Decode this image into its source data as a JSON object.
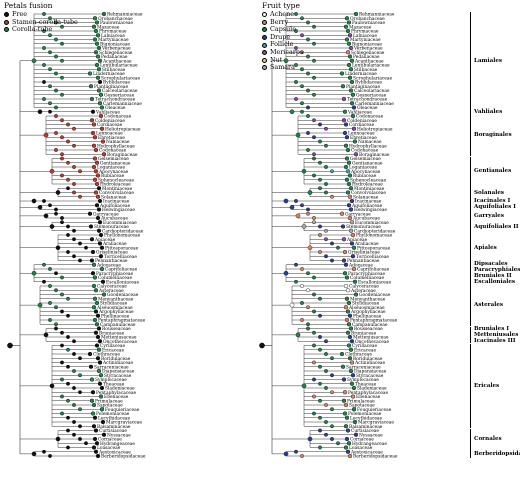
{
  "left_panel": {
    "legend_title": "Petals fusion",
    "legend": [
      {
        "label": "Free",
        "color": "#111111"
      },
      {
        "label": "Stamen-corolla-tube",
        "color": "#c0392b"
      },
      {
        "label": "Corolla-tube",
        "color": "#1e8449"
      }
    ]
  },
  "right_panel": {
    "legend_title": "Fruit type",
    "legend": [
      {
        "label": "Achene",
        "color": "#ffffff"
      },
      {
        "label": "Berry",
        "color": "#e08060"
      },
      {
        "label": "Capsule",
        "color": "#1e8449"
      },
      {
        "label": "Drupe",
        "color": "#2c3e99"
      },
      {
        "label": "Follicle",
        "color": "#40a0c0"
      },
      {
        "label": "Mericarps",
        "color": "#8e44ad"
      },
      {
        "label": "Nut",
        "color": "#f4d03f"
      },
      {
        "label": "Samara",
        "color": "#aaaaaa"
      }
    ]
  },
  "orders": [
    {
      "name": "Lamiales",
      "lines": [
        "Lamiales"
      ]
    },
    {
      "name": "Vahliales",
      "lines": [
        "Vahliales"
      ]
    },
    {
      "name": "Boraginales",
      "lines": [
        "Boraginales"
      ]
    },
    {
      "name": "Gentianales",
      "lines": [
        "Gentianales"
      ]
    },
    {
      "name": "Solanales",
      "lines": [
        "Solanales"
      ]
    },
    {
      "name": "Icacinales",
      "lines": [
        "Icacinales I"
      ]
    },
    {
      "name": "Aquifoliales-1",
      "lines": [
        "Aquifoliales I"
      ]
    },
    {
      "name": "Garryales",
      "lines": [
        "Garryales"
      ]
    },
    {
      "name": "Aquifoliales-2",
      "lines": [
        "Aquifoliales II"
      ]
    },
    {
      "name": "Apiales",
      "lines": [
        "Apiales"
      ]
    },
    {
      "name": "Dipsacales-group",
      "lines": [
        "Dipsacales",
        "Paracryphiales",
        "Bruniales II",
        "Escalloniales"
      ]
    },
    {
      "name": "Asterales",
      "lines": [
        "Asterales"
      ]
    },
    {
      "name": "Bruniales-group",
      "lines": [
        "Bruniales I",
        "Metteniusales",
        "Icacinales III"
      ]
    },
    {
      "name": "Ericales",
      "lines": [
        "Ericales"
      ]
    },
    {
      "name": "Cornales",
      "lines": [
        "Cornales"
      ]
    },
    {
      "name": "Berberidopsidales",
      "lines": [
        "Berberidopsidales"
      ]
    }
  ],
  "taxa": [
    {
      "name": "Rehmanniaceae",
      "fusion": 2,
      "fruit": 2
    },
    {
      "name": "Orobanchaceae",
      "fusion": 2,
      "fruit": 2
    },
    {
      "name": "Paulowniaceae",
      "fusion": 2,
      "fruit": 2
    },
    {
      "name": "Mazaceae",
      "fusion": 2,
      "fruit": 2
    },
    {
      "name": "Phrymaceae",
      "fusion": 2,
      "fruit": 2
    },
    {
      "name": "Lamiaceae",
      "fusion": 2,
      "fruit": 5
    },
    {
      "name": "Martyniaceae",
      "fusion": 2,
      "fruit": 2
    },
    {
      "name": "Bignoniaceae",
      "fusion": 2,
      "fruit": 2
    },
    {
      "name": "Verbenaceae",
      "fusion": 2,
      "fruit": 5
    },
    {
      "name": "Schlegeliaceae",
      "fusion": 2,
      "fruit": 1
    },
    {
      "name": "Pedaliaceae",
      "fusion": 2,
      "fruit": 2
    },
    {
      "name": "Acanthaceae",
      "fusion": 2,
      "fruit": 2
    },
    {
      "name": "Lentibulariaceae",
      "fusion": 2,
      "fruit": 2
    },
    {
      "name": "Stilbaceae",
      "fusion": 2,
      "fruit": 2
    },
    {
      "name": "Linderniaceae",
      "fusion": 2,
      "fruit": 2
    },
    {
      "name": "Scrophulariaceae",
      "fusion": 2,
      "fruit": 2
    },
    {
      "name": "Byblidaceae",
      "fusion": 0,
      "fruit": 2
    },
    {
      "name": "Plantaginaceae",
      "fusion": 2,
      "fruit": 2
    },
    {
      "name": "Calceolariaceae",
      "fusion": 2,
      "fruit": 2
    },
    {
      "name": "Gesneriaceae",
      "fusion": 2,
      "fruit": 2
    },
    {
      "name": "Tetrachondraceae",
      "fusion": 2,
      "fruit": 5
    },
    {
      "name": "Carlemanniaceae",
      "fusion": 2,
      "fruit": 2
    },
    {
      "name": "Oleaceae",
      "fusion": 2,
      "fruit": 3
    },
    {
      "name": "Vahliaceae",
      "fusion": 0,
      "fruit": 2
    },
    {
      "name": "Codonaceae",
      "fusion": 1,
      "fruit": 2
    },
    {
      "name": "Coldeniaceae",
      "fusion": 1,
      "fruit": 5
    },
    {
      "name": "Cordiaceae",
      "fusion": 1,
      "fruit": 3
    },
    {
      "name": "Heliotropiaceae",
      "fusion": 1,
      "fruit": 5
    },
    {
      "name": "Lennoaceae",
      "fusion": 1,
      "fruit": 3
    },
    {
      "name": "Ehretiaceae",
      "fusion": 1,
      "fruit": 3
    },
    {
      "name": "Namaceae",
      "fusion": 1,
      "fruit": 2
    },
    {
      "name": "Hydrophyllaceae",
      "fusion": 1,
      "fruit": 2
    },
    {
      "name": "Codonaceae",
      "fusion": 1,
      "fruit": 2
    },
    {
      "name": "Boraginaceae",
      "fusion": 1,
      "fruit": 5
    },
    {
      "name": "Gelsemiaceae",
      "fusion": 1,
      "fruit": 2
    },
    {
      "name": "Gentianaceae",
      "fusion": 1,
      "fruit": 2
    },
    {
      "name": "Loganiaceae",
      "fusion": 1,
      "fruit": 2
    },
    {
      "name": "Apocynaceae",
      "fusion": 1,
      "fruit": 4
    },
    {
      "name": "Rubiaceae",
      "fusion": 1,
      "fruit": 2
    },
    {
      "name": "Sphenocleaceae",
      "fusion": 1,
      "fruit": 2
    },
    {
      "name": "Hydroleaceae",
      "fusion": 1,
      "fruit": 2
    },
    {
      "name": "Montiniaceae",
      "fusion": 0,
      "fruit": 2
    },
    {
      "name": "Convolvulaceae",
      "fusion": 1,
      "fruit": 2
    },
    {
      "name": "Solanaceae",
      "fusion": 1,
      "fruit": 1
    },
    {
      "name": "Icacinaceae",
      "fusion": 0,
      "fruit": 3
    },
    {
      "name": "Aquifoliaceae",
      "fusion": 0,
      "fruit": 3
    },
    {
      "name": "Helwingiaceae",
      "fusion": 0,
      "fruit": 3
    },
    {
      "name": "Garryaceae",
      "fusion": 0,
      "fruit": 1
    },
    {
      "name": "Aucubaceae",
      "fusion": 0,
      "fruit": 1
    },
    {
      "name": "Eucommiaceae",
      "fusion": 0,
      "fruit": 7
    },
    {
      "name": "Stemonuraceae",
      "fusion": 0,
      "fruit": 3
    },
    {
      "name": "Cardiopteridaceae",
      "fusion": 0,
      "fruit": 7
    },
    {
      "name": "Phyllonomaceae",
      "fusion": 0,
      "fruit": 1
    },
    {
      "name": "Apiaceae",
      "fusion": 0,
      "fruit": 5
    },
    {
      "name": "Araliaceae",
      "fusion": 0,
      "fruit": 3
    },
    {
      "name": "Pittosporaceae",
      "fusion": 0,
      "fruit": 2
    },
    {
      "name": "Griseliniaceae",
      "fusion": 0,
      "fruit": 1
    },
    {
      "name": "Torricelliaceae",
      "fusion": 0,
      "fruit": 3
    },
    {
      "name": "Pennantiaceae",
      "fusion": 0,
      "fruit": 3
    },
    {
      "name": "Adoxaceae",
      "fusion": 2,
      "fruit": 3
    },
    {
      "name": "Caprifoliaceae",
      "fusion": 2,
      "fruit": 1
    },
    {
      "name": "Paracryphiaceae",
      "fusion": 0,
      "fruit": 2
    },
    {
      "name": "Columelliaceae",
      "fusion": 2,
      "fruit": 2
    },
    {
      "name": "Escalloniaceae",
      "fusion": 0,
      "fruit": 2
    },
    {
      "name": "Calyceraceae",
      "fusion": 2,
      "fruit": 0
    },
    {
      "name": "Asteraceae",
      "fusion": 2,
      "fruit": 0
    },
    {
      "name": "Goodeniaceae",
      "fusion": 2,
      "fruit": 2
    },
    {
      "name": "Menyanthaceae",
      "fusion": 2,
      "fruit": 2
    },
    {
      "name": "Stylidiaceae",
      "fusion": 2,
      "fruit": 2
    },
    {
      "name": "Alseuosmiaceae",
      "fusion": 2,
      "fruit": 1
    },
    {
      "name": "Argophyllaceae",
      "fusion": 0,
      "fruit": 2
    },
    {
      "name": "Phellinaceae",
      "fusion": 0,
      "fruit": 3
    },
    {
      "name": "Pentaphragmataceae",
      "fusion": 2,
      "fruit": 1
    },
    {
      "name": "Campanulaceae",
      "fusion": 2,
      "fruit": 2
    },
    {
      "name": "Rousseaceae",
      "fusion": 0,
      "fruit": 2
    },
    {
      "name": "Bruniaceae",
      "fusion": 0,
      "fruit": 2
    },
    {
      "name": "Metteniusaceae",
      "fusion": 0,
      "fruit": 3
    },
    {
      "name": "Oncothecaceae",
      "fusion": 0,
      "fruit": 3
    },
    {
      "name": "Cyrillaceae",
      "fusion": 0,
      "fruit": 2
    },
    {
      "name": "Ericaceae",
      "fusion": 2,
      "fruit": 2
    },
    {
      "name": "Clethraceae",
      "fusion": 0,
      "fruit": 2
    },
    {
      "name": "Roridulaceae",
      "fusion": 0,
      "fruit": 2
    },
    {
      "name": "Actinidiaceae",
      "fusion": 0,
      "fruit": 1
    },
    {
      "name": "Sarraceniaceae",
      "fusion": 0,
      "fruit": 2
    },
    {
      "name": "Diapensiaceae",
      "fusion": 2,
      "fruit": 2
    },
    {
      "name": "Styracaceae",
      "fusion": 2,
      "fruit": 3
    },
    {
      "name": "Symplocaceae",
      "fusion": 2,
      "fruit": 3
    },
    {
      "name": "Theaceae",
      "fusion": 0,
      "fruit": 2
    },
    {
      "name": "Sladeniaceae",
      "fusion": 0,
      "fruit": 2
    },
    {
      "name": "Pentaphylacaceae",
      "fusion": 0,
      "fruit": 1
    },
    {
      "name": "Ebenaceae",
      "fusion": 2,
      "fruit": 1
    },
    {
      "name": "Primulaceae",
      "fusion": 2,
      "fruit": 2
    },
    {
      "name": "Sapotaceae",
      "fusion": 2,
      "fruit": 1
    },
    {
      "name": "Fouquieriaceae",
      "fusion": 2,
      "fruit": 2
    },
    {
      "name": "Polemoniaceae",
      "fusion": 2,
      "fruit": 2
    },
    {
      "name": "Lecythidaceae",
      "fusion": 0,
      "fruit": 2
    },
    {
      "name": "Marcgraviaceae",
      "fusion": 0,
      "fruit": 2
    },
    {
      "name": "Balsaminaceae",
      "fusion": 0,
      "fruit": 2
    },
    {
      "name": "Curtisiaceae",
      "fusion": 0,
      "fruit": 3
    },
    {
      "name": "Nyssaceae",
      "fusion": 0,
      "fruit": 3
    },
    {
      "name": "Cornaceae",
      "fusion": 0,
      "fruit": 3
    },
    {
      "name": "Hydrangeaceae",
      "fusion": 0,
      "fruit": 2
    },
    {
      "name": "Loasaceae",
      "fusion": 0,
      "fruit": 2
    },
    {
      "name": "Aextoxicaceae",
      "fusion": 0,
      "fruit": 3
    },
    {
      "name": "Berberidopsidaceae",
      "fusion": 0,
      "fruit": 1
    }
  ]
}
